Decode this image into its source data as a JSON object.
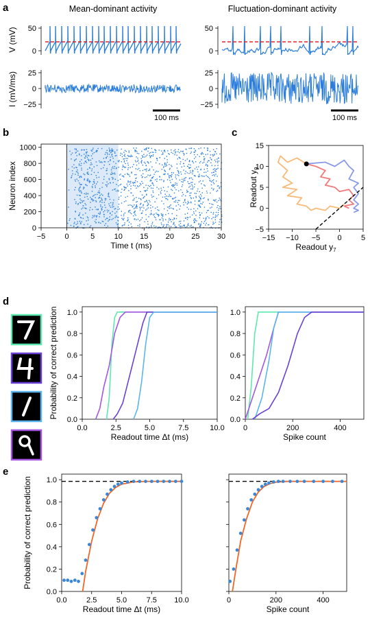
{
  "panel_letters": {
    "a": "a",
    "b": "b",
    "c": "c",
    "d": "d",
    "e": "e"
  },
  "colors": {
    "trace": "#2b7ddc",
    "threshold": "#e0202a",
    "raster": "#2b7ddc",
    "shade": "#dbe9f8",
    "fit": "#f26522",
    "dots": "#3a87d8",
    "digit_7": "#5de8b0",
    "digit_4": "#6a3fd6",
    "digit_1": "#5ab4ee",
    "digit_9": "#a455e0",
    "traj_orange": "#f7b26a",
    "traj_red": "#ee6b6b",
    "traj_blue": "#7b8ee8"
  },
  "panel_a": {
    "title_left": "Mean-dominant activity",
    "title_right": "Fluctuation-dominant activity",
    "v_label": "V (mV)",
    "i_label": "I (mV/ms)",
    "v_ticks": [
      "50",
      "0"
    ],
    "i_ticks": [
      "25",
      "0",
      "−25"
    ],
    "scalebar_left": "100 ms",
    "scalebar_right": "100 ms"
  },
  "chart_data": [
    {
      "type": "scatter",
      "panel": "b",
      "xlabel": "Time t (ms)",
      "ylabel": "Neuron index",
      "xlim": [
        -5,
        30
      ],
      "ylim": [
        0,
        1000
      ],
      "xticks": [
        "−5",
        "0",
        "5",
        "10",
        "15",
        "20",
        "25",
        "30"
      ],
      "yticks": [
        "0",
        "200",
        "400",
        "600",
        "800",
        "1000"
      ],
      "shaded_interval": [
        0,
        10
      ],
      "note_points": "spikes"
    },
    {
      "type": "line",
      "panel": "c",
      "xlabel": "Readout y7",
      "ylabel": "Readout y9",
      "xlim": [
        -15,
        5
      ],
      "ylim": [
        -5,
        15
      ],
      "xticks": [
        "−15",
        "−10",
        "−5",
        "0",
        "5"
      ],
      "yticks": [
        "−5",
        "0",
        "5",
        "10",
        "15"
      ],
      "diagonal": [
        [
          -5,
          -5
        ],
        [
          5,
          5
        ]
      ],
      "endpoint": [
        -7,
        10.6
      ],
      "series": [
        {
          "color_key": "traj_orange",
          "points": [
            [
              -7,
              10.6
            ],
            [
              -9,
              12
            ],
            [
              -11,
              11
            ],
            [
              -12.5,
              12.5
            ],
            [
              -13,
              11
            ],
            [
              -11,
              9
            ],
            [
              -12,
              7.5
            ],
            [
              -10,
              6
            ],
            [
              -12,
              5
            ],
            [
              -9,
              4.5
            ],
            [
              -11,
              3
            ],
            [
              -8,
              2.5
            ],
            [
              -9,
              1
            ],
            [
              -7,
              0.5
            ],
            [
              -6,
              -0.5
            ],
            [
              -5,
              0
            ],
            [
              -3,
              -0.5
            ],
            [
              -2,
              0.5
            ],
            [
              0,
              0
            ],
            [
              1,
              1
            ]
          ]
        },
        {
          "color_key": "traj_red",
          "points": [
            [
              -7,
              10.6
            ],
            [
              -5,
              10
            ],
            [
              -3,
              9
            ],
            [
              -4,
              7.5
            ],
            [
              -2,
              7
            ],
            [
              -3,
              5.5
            ],
            [
              -1,
              5
            ],
            [
              0,
              4
            ],
            [
              2,
              4.5
            ],
            [
              3,
              3
            ],
            [
              2,
              2
            ],
            [
              3,
              1
            ],
            [
              1,
              0.5
            ],
            [
              2,
              0
            ]
          ]
        },
        {
          "color_key": "traj_blue",
          "points": [
            [
              -7,
              10.6
            ],
            [
              -3,
              11
            ],
            [
              -1,
              10
            ],
            [
              1,
              11.5
            ],
            [
              2,
              10
            ],
            [
              3,
              9
            ],
            [
              2,
              7
            ],
            [
              4,
              6
            ],
            [
              3,
              5
            ],
            [
              4,
              3.5
            ],
            [
              3,
              2
            ],
            [
              4,
              1
            ],
            [
              3,
              0
            ],
            [
              4,
              -0.5
            ],
            [
              3,
              -1
            ]
          ]
        }
      ]
    },
    {
      "type": "line",
      "panel": "d-left",
      "xlabel": "Readout time Δt (ms)",
      "ylabel": "Probability of correct prediction",
      "xlim": [
        0,
        10
      ],
      "ylim": [
        0,
        1.05
      ],
      "xticks": [
        "0.0",
        "2.5",
        "5.0",
        "7.5",
        "10.0"
      ],
      "yticks": [
        "0.0",
        "0.2",
        "0.4",
        "0.6",
        "0.8",
        "1.0"
      ],
      "series": [
        {
          "color_key": "digit_7",
          "points": [
            [
              1.8,
              0
            ],
            [
              2.0,
              0.2
            ],
            [
              2.2,
              0.7
            ],
            [
              2.4,
              0.95
            ],
            [
              2.6,
              1.0
            ],
            [
              10,
              1.0
            ]
          ]
        },
        {
          "color_key": "digit_9",
          "points": [
            [
              1.0,
              0
            ],
            [
              1.3,
              0.1
            ],
            [
              1.6,
              0.3
            ],
            [
              2.0,
              0.5
            ],
            [
              2.4,
              0.8
            ],
            [
              2.8,
              0.95
            ],
            [
              3.2,
              1.0
            ],
            [
              10,
              1.0
            ]
          ]
        },
        {
          "color_key": "digit_4",
          "points": [
            [
              2.3,
              0
            ],
            [
              2.6,
              0.05
            ],
            [
              3.0,
              0.15
            ],
            [
              3.4,
              0.35
            ],
            [
              3.8,
              0.55
            ],
            [
              4.2,
              0.75
            ],
            [
              4.5,
              0.9
            ],
            [
              4.8,
              1.0
            ],
            [
              10,
              1.0
            ]
          ]
        },
        {
          "color_key": "digit_1",
          "points": [
            [
              3.8,
              0
            ],
            [
              4.1,
              0.1
            ],
            [
              4.4,
              0.35
            ],
            [
              4.7,
              0.7
            ],
            [
              5.0,
              0.95
            ],
            [
              5.3,
              1.0
            ],
            [
              10,
              1.0
            ]
          ]
        }
      ]
    },
    {
      "type": "line",
      "panel": "d-right",
      "xlabel": "Spike count",
      "ylabel": "",
      "xlim": [
        0,
        500
      ],
      "ylim": [
        0,
        1.05
      ],
      "xticks": [
        "0",
        "200",
        "400"
      ],
      "yticks": [
        "0.0",
        "0.2",
        "0.4",
        "0.6",
        "0.8",
        "1.0"
      ],
      "series": [
        {
          "color_key": "digit_7",
          "points": [
            [
              10,
              0
            ],
            [
              25,
              0.3
            ],
            [
              40,
              0.8
            ],
            [
              55,
              1.0
            ],
            [
              500,
              1.0
            ]
          ]
        },
        {
          "color_key": "digit_9",
          "points": [
            [
              0,
              0
            ],
            [
              30,
              0.2
            ],
            [
              60,
              0.4
            ],
            [
              90,
              0.6
            ],
            [
              120,
              0.85
            ],
            [
              140,
              1.0
            ],
            [
              500,
              1.0
            ]
          ]
        },
        {
          "color_key": "digit_1",
          "points": [
            [
              40,
              0
            ],
            [
              70,
              0.2
            ],
            [
              100,
              0.55
            ],
            [
              120,
              0.85
            ],
            [
              140,
              1.0
            ],
            [
              500,
              1.0
            ]
          ]
        },
        {
          "color_key": "digit_4",
          "points": [
            [
              30,
              0
            ],
            [
              60,
              0.05
            ],
            [
              100,
              0.1
            ],
            [
              140,
              0.25
            ],
            [
              180,
              0.5
            ],
            [
              220,
              0.8
            ],
            [
              250,
              0.95
            ],
            [
              280,
              1.0
            ],
            [
              500,
              1.0
            ]
          ]
        }
      ]
    },
    {
      "type": "scatter",
      "panel": "e-left",
      "xlabel": "Readout time Δt (ms)",
      "ylabel": "Probability of correct prediction",
      "xlim": [
        0,
        10
      ],
      "ylim": [
        0,
        1.05
      ],
      "xticks": [
        "0.0",
        "2.5",
        "5.0",
        "7.5",
        "10.0"
      ],
      "yticks": [
        "0.0",
        "0.2",
        "0.4",
        "0.6",
        "0.8",
        "1.0"
      ],
      "reference_line": 0.985,
      "points": [
        [
          0.2,
          0.1
        ],
        [
          0.5,
          0.1
        ],
        [
          0.8,
          0.09
        ],
        [
          1.1,
          0.1
        ],
        [
          1.4,
          0.09
        ],
        [
          1.7,
          0.16
        ],
        [
          2.0,
          0.28
        ],
        [
          2.3,
          0.42
        ],
        [
          2.6,
          0.55
        ],
        [
          2.9,
          0.66
        ],
        [
          3.2,
          0.74
        ],
        [
          3.5,
          0.82
        ],
        [
          3.8,
          0.87
        ],
        [
          4.1,
          0.91
        ],
        [
          4.4,
          0.94
        ],
        [
          4.7,
          0.96
        ],
        [
          5.0,
          0.97
        ],
        [
          5.5,
          0.98
        ],
        [
          6.0,
          0.985
        ],
        [
          6.5,
          0.985
        ],
        [
          7.0,
          0.985
        ],
        [
          7.5,
          0.985
        ],
        [
          8.0,
          0.985
        ],
        [
          8.5,
          0.985
        ],
        [
          9.0,
          0.985
        ],
        [
          9.5,
          0.985
        ],
        [
          10.0,
          0.985
        ]
      ],
      "fit": [
        [
          1.75,
          0
        ],
        [
          2.0,
          0.18
        ],
        [
          2.5,
          0.45
        ],
        [
          3.0,
          0.65
        ],
        [
          3.5,
          0.79
        ],
        [
          4.0,
          0.88
        ],
        [
          4.5,
          0.93
        ],
        [
          5.0,
          0.96
        ],
        [
          6.0,
          0.98
        ],
        [
          7.0,
          0.985
        ],
        [
          10,
          0.985
        ]
      ]
    },
    {
      "type": "scatter",
      "panel": "e-right",
      "xlabel": "Spike count",
      "ylabel": "",
      "xlim": [
        0,
        500
      ],
      "ylim": [
        0,
        1.05
      ],
      "xticks": [
        "0",
        "200",
        "400"
      ],
      "yticks": [
        "0.0",
        "0.2",
        "0.4",
        "0.6",
        "0.8",
        "1.0"
      ],
      "reference_line": 0.985,
      "points": [
        [
          5,
          0.09
        ],
        [
          20,
          0.2
        ],
        [
          35,
          0.37
        ],
        [
          50,
          0.52
        ],
        [
          65,
          0.64
        ],
        [
          80,
          0.74
        ],
        [
          95,
          0.82
        ],
        [
          110,
          0.87
        ],
        [
          125,
          0.91
        ],
        [
          140,
          0.94
        ],
        [
          155,
          0.96
        ],
        [
          170,
          0.97
        ],
        [
          190,
          0.98
        ],
        [
          210,
          0.985
        ],
        [
          230,
          0.985
        ],
        [
          260,
          0.985
        ],
        [
          290,
          0.985
        ],
        [
          320,
          0.985
        ],
        [
          360,
          0.985
        ],
        [
          400,
          0.985
        ],
        [
          440,
          0.985
        ],
        [
          480,
          0.985
        ]
      ],
      "fit": [
        [
          15,
          0
        ],
        [
          30,
          0.2
        ],
        [
          50,
          0.45
        ],
        [
          75,
          0.65
        ],
        [
          100,
          0.8
        ],
        [
          125,
          0.89
        ],
        [
          150,
          0.94
        ],
        [
          175,
          0.965
        ],
        [
          200,
          0.978
        ],
        [
          250,
          0.985
        ],
        [
          500,
          0.985
        ]
      ]
    }
  ]
}
